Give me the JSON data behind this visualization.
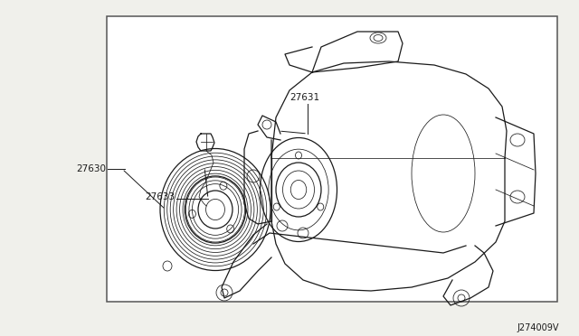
{
  "background_color": "#f0f0eb",
  "box_color": "#ffffff",
  "box_border_color": "#444444",
  "line_color": "#1a1a1a",
  "diagram_code": "J274009V",
  "font_size_label": 7.5,
  "font_size_code": 7.0,
  "labels": {
    "27630": [
      0.175,
      0.505
    ],
    "27633": [
      0.285,
      0.405
    ],
    "27631": [
      0.425,
      0.235
    ]
  }
}
